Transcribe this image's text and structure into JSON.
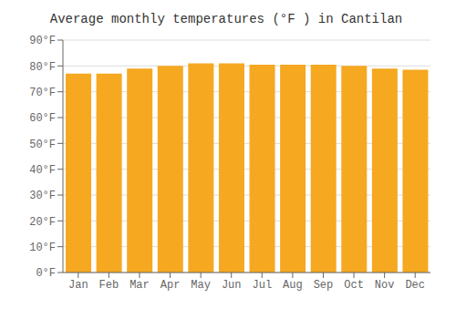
{
  "chart_data": {
    "type": "bar",
    "title": "Average monthly temperatures (°F ) in Cantilan",
    "categories": [
      "Jan",
      "Feb",
      "Mar",
      "Apr",
      "May",
      "Jun",
      "Jul",
      "Aug",
      "Sep",
      "Oct",
      "Nov",
      "Dec"
    ],
    "values": [
      77,
      77,
      79,
      80,
      81,
      81,
      80.5,
      80.5,
      80.5,
      80,
      79,
      78.5
    ],
    "color": "#F5A820",
    "ylim": [
      0,
      90
    ],
    "yticks": [
      {
        "value": 0,
        "label": "0°F"
      },
      {
        "value": 10,
        "label": "10°F"
      },
      {
        "value": 20,
        "label": "20°F"
      },
      {
        "value": 30,
        "label": "30°F"
      },
      {
        "value": 40,
        "label": "40°F"
      },
      {
        "value": 50,
        "label": "50°F"
      },
      {
        "value": 60,
        "label": "60°F"
      },
      {
        "value": 70,
        "label": "70°F"
      },
      {
        "value": 80,
        "label": "80°F"
      },
      {
        "value": 90,
        "label": "90°F"
      }
    ],
    "grid": true
  }
}
